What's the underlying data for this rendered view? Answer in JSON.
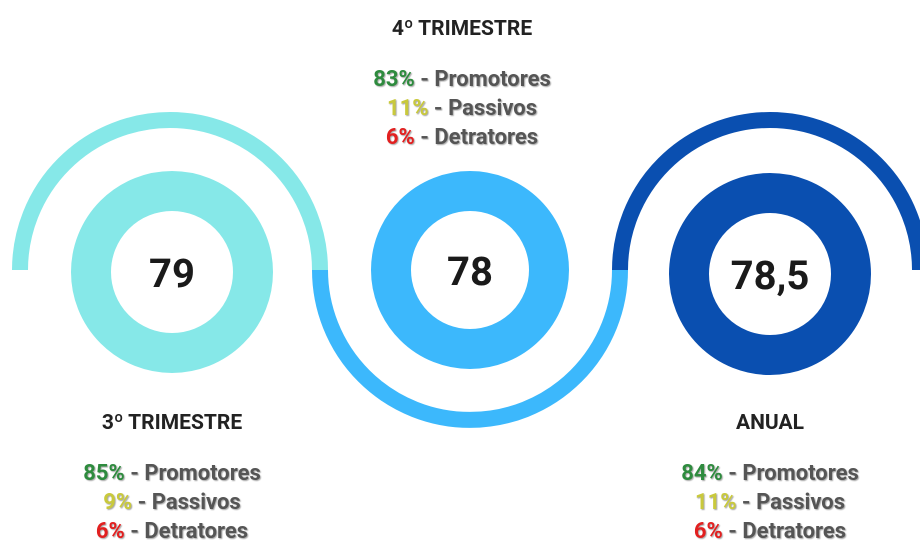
{
  "panels": [
    {
      "title": "3º TRIMESTRE",
      "score": "79",
      "lines": [
        {
          "pct": "85%",
          "label": " - Promotores"
        },
        {
          "pct": "9%",
          "label": " - Passivos"
        },
        {
          "pct": "6%",
          "label": " - Detratores"
        }
      ]
    },
    {
      "title": "4º TRIMESTRE",
      "score": "78",
      "lines": [
        {
          "pct": "83%",
          "label": " - Promotores"
        },
        {
          "pct": "11%",
          "label": " - Passivos"
        },
        {
          "pct": "6%",
          "label": " - Detratores"
        }
      ]
    },
    {
      "title": "ANUAL",
      "score": "78,5",
      "lines": [
        {
          "pct": "84%",
          "label": " - Promotores"
        },
        {
          "pct": "11%",
          "label": " - Passivos"
        },
        {
          "pct": "6%",
          "label": " - Detratores"
        }
      ]
    }
  ]
}
